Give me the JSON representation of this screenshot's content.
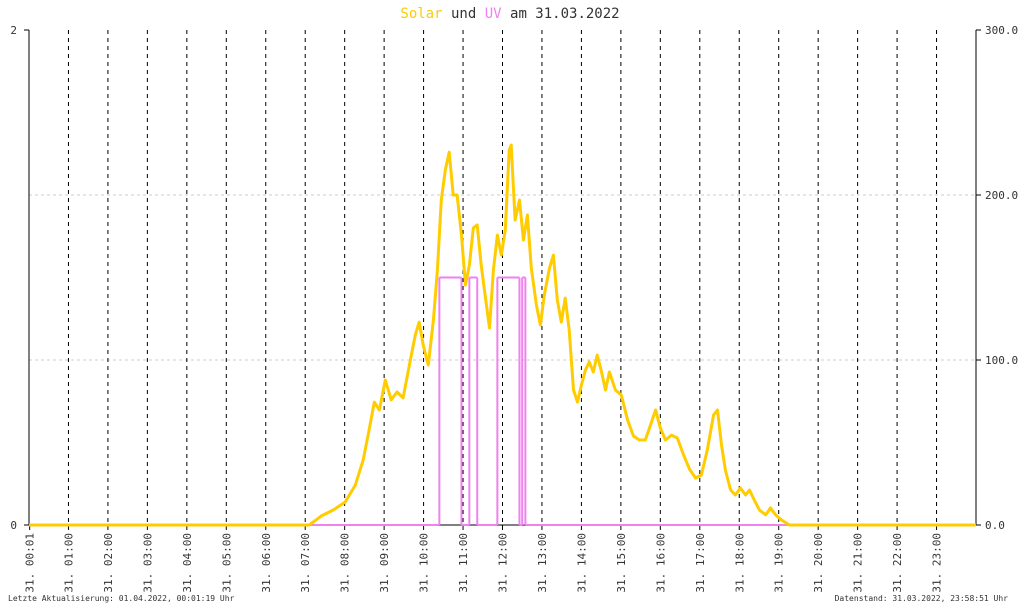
{
  "chart_data": {
    "type": "line",
    "title_connector": "und",
    "title_date": "am 31.03.2022",
    "footer_left": "Letzte Aktualisierung: 01.04.2022, 00:01:19 Uhr",
    "footer_right": "Datenstand: 31.03.2022, 23:58:51 Uhr",
    "xlim": [
      0,
      24
    ],
    "xticks": [
      {
        "value": 0.0167,
        "label": "31. 00:01"
      },
      {
        "value": 1,
        "label": "31. 01:00"
      },
      {
        "value": 2,
        "label": "31. 02:00"
      },
      {
        "value": 3,
        "label": "31. 03:00"
      },
      {
        "value": 4,
        "label": "31. 04:00"
      },
      {
        "value": 5,
        "label": "31. 05:00"
      },
      {
        "value": 6,
        "label": "31. 06:00"
      },
      {
        "value": 7,
        "label": "31. 07:00"
      },
      {
        "value": 8,
        "label": "31. 08:00"
      },
      {
        "value": 9,
        "label": "31. 09:00"
      },
      {
        "value": 10,
        "label": "31. 10:00"
      },
      {
        "value": 11,
        "label": "31. 11:00"
      },
      {
        "value": 12,
        "label": "31. 12:00"
      },
      {
        "value": 13,
        "label": "31. 13:00"
      },
      {
        "value": 14,
        "label": "31. 14:00"
      },
      {
        "value": 15,
        "label": "31. 15:00"
      },
      {
        "value": 16,
        "label": "31. 16:00"
      },
      {
        "value": 17,
        "label": "31. 17:00"
      },
      {
        "value": 18,
        "label": "31. 18:00"
      },
      {
        "value": 19,
        "label": "31. 19:00"
      },
      {
        "value": 20,
        "label": "31. 20:00"
      },
      {
        "value": 21,
        "label": "31. 21:00"
      },
      {
        "value": 22,
        "label": "31. 22:00"
      },
      {
        "value": 23,
        "label": "31. 23:00"
      }
    ],
    "ylim": [
      0,
      2
    ],
    "yticks": [
      0,
      2
    ],
    "y2lim": [
      0,
      300
    ],
    "y2ticks": [
      {
        "value": 0,
        "label": "0.0"
      },
      {
        "value": 100,
        "label": "100.0"
      },
      {
        "value": 200,
        "label": "200.0"
      },
      {
        "value": 300,
        "label": "300.0"
      }
    ],
    "grid": true,
    "series": [
      {
        "name": "Solar",
        "color": "#ffcc00",
        "axis": "y2",
        "step": false,
        "x": [
          0,
          7.1,
          7.41,
          7.71,
          8.01,
          8.27,
          8.47,
          8.62,
          8.75,
          8.88,
          9.03,
          9.18,
          9.33,
          9.48,
          9.64,
          9.79,
          9.89,
          9.99,
          10.12,
          10.25,
          10.35,
          10.45,
          10.55,
          10.65,
          10.75,
          10.85,
          10.96,
          11.06,
          11.16,
          11.26,
          11.36,
          11.46,
          11.56,
          11.67,
          11.77,
          11.87,
          11.97,
          12.07,
          12.17,
          12.22,
          12.32,
          12.43,
          12.53,
          12.63,
          12.73,
          12.86,
          12.96,
          13.06,
          13.19,
          13.29,
          13.39,
          13.49,
          13.59,
          13.69,
          13.8,
          13.9,
          14.0,
          14.1,
          14.2,
          14.3,
          14.4,
          14.5,
          14.61,
          14.71,
          14.86,
          15.01,
          15.17,
          15.32,
          15.47,
          15.62,
          15.75,
          15.88,
          16.0,
          16.13,
          16.28,
          16.43,
          16.59,
          16.74,
          16.89,
          17.04,
          17.19,
          17.35,
          17.45,
          17.55,
          17.65,
          17.78,
          17.9,
          18.03,
          18.16,
          18.26,
          18.38,
          18.51,
          18.67,
          18.79,
          18.92,
          19.07,
          19.27,
          24
        ],
        "values": [
          0,
          0,
          5.5,
          9.1,
          13.9,
          24.2,
          39.4,
          57.6,
          74.5,
          69.7,
          87.9,
          75.8,
          80.6,
          77.0,
          97.0,
          115.1,
          123.0,
          109.1,
          97.0,
          124.2,
          154.5,
          197.0,
          215.1,
          226.0,
          200.0,
          200.0,
          175.7,
          145.4,
          157.6,
          180.0,
          181.8,
          157.6,
          139.4,
          119.4,
          154.5,
          175.7,
          163.6,
          178.8,
          227.3,
          230.3,
          184.8,
          197.0,
          172.7,
          187.9,
          155.7,
          133.3,
          121.2,
          139.4,
          155.7,
          163.6,
          136.4,
          123.0,
          137.6,
          118.2,
          81.8,
          74.5,
          84.8,
          93.9,
          98.8,
          92.7,
          103.0,
          93.9,
          81.8,
          92.7,
          81.8,
          78.8,
          63.6,
          53.9,
          51.5,
          51.5,
          60.6,
          69.7,
          58.8,
          51.5,
          54.5,
          52.7,
          42.4,
          33.9,
          28.5,
          30.3,
          45.5,
          66.7,
          69.7,
          48.5,
          33.3,
          21.2,
          18.2,
          22.4,
          18.2,
          21.2,
          15.2,
          9.1,
          6.1,
          10.3,
          6.1,
          3.0,
          0,
          0
        ]
      },
      {
        "name": "UV",
        "color": "#ee82ee",
        "axis": "y",
        "step": true,
        "x": [
          0,
          10.4,
          10.96,
          11.16,
          11.36,
          11.87,
          12.43,
          12.5,
          12.58
        ],
        "values": [
          0,
          1,
          0,
          1,
          0,
          1,
          0,
          1,
          0
        ]
      }
    ]
  }
}
